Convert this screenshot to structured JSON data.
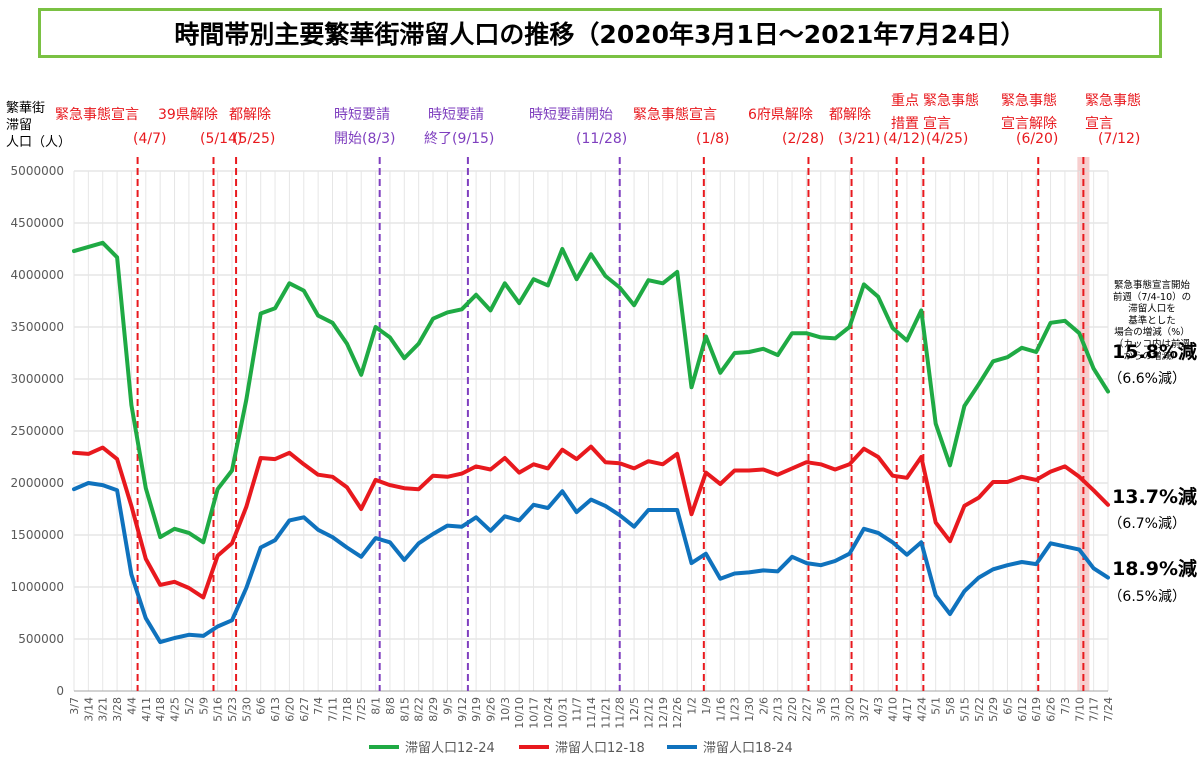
{
  "title": "時間帯別主要繁華街滞留人口の推移（2020年3月1日～2021年7月24日）",
  "colors": {
    "green": "#1faa44",
    "red": "#e8191e",
    "blue": "#0f72bd",
    "event_red": "#e8191e",
    "event_purple": "#7f3fbf",
    "highlight": "#f6c6c6"
  },
  "chart_data": {
    "type": "line",
    "ylabel": "繁華街滞留人口（人）",
    "ylim": [
      0,
      5000000
    ],
    "yticks": [
      0,
      500000,
      1000000,
      1500000,
      2000000,
      2500000,
      3000000,
      3500000,
      4000000,
      4500000,
      5000000
    ],
    "grid": true,
    "legend_position": "bottom",
    "x": [
      "3/7",
      "3/14",
      "3/21",
      "3/28",
      "4/4",
      "4/11",
      "4/18",
      "4/25",
      "5/2",
      "5/9",
      "5/16",
      "5/23",
      "5/30",
      "6/6",
      "6/13",
      "6/20",
      "6/27",
      "7/4",
      "7/11",
      "7/18",
      "7/25",
      "8/1",
      "8/8",
      "8/15",
      "8/22",
      "8/29",
      "9/5",
      "9/12",
      "9/19",
      "9/26",
      "10/3",
      "10/10",
      "10/17",
      "10/24",
      "10/31",
      "11/7",
      "11/14",
      "11/21",
      "11/28",
      "12/5",
      "12/12",
      "12/19",
      "12/26",
      "1/2",
      "1/9",
      "1/16",
      "1/23",
      "1/30",
      "2/6",
      "2/13",
      "2/20",
      "2/27",
      "3/6",
      "3/13",
      "3/20",
      "3/27",
      "4/3",
      "4/10",
      "4/17",
      "4/24",
      "5/1",
      "5/8",
      "5/15",
      "5/22",
      "5/29",
      "6/5",
      "6/12",
      "6/19",
      "6/26",
      "7/3",
      "7/10",
      "7/17",
      "7/24"
    ],
    "x_tick_labels": [
      "3/7",
      "3/14",
      "3/21",
      "3/28",
      "4/4",
      "4/11",
      "4/18",
      "4/25",
      "5/2",
      "5/9",
      "5/16",
      "5/23",
      "5/30",
      "6/6",
      "6/13",
      "6/20",
      "6/27",
      "7/4",
      "7/11",
      "7/18",
      "7/25",
      "8/1",
      "8/8",
      "8/15",
      "8/22",
      "8/29",
      "9/5",
      "9/12",
      "9/19",
      "9/26",
      "10/3",
      "10/10",
      "10/17",
      "10/24",
      "10/31",
      "11/7",
      "11/14",
      "11/21",
      "11/28",
      "12/5",
      "12/12",
      "12/19",
      "12/26",
      "1/2",
      "1/9",
      "1/16",
      "1/23",
      "1/30",
      "2/6",
      "2/13",
      "2/20",
      "2/27",
      "3/6",
      "3/13",
      "3/20",
      "3/27",
      "4/3",
      "4/10",
      "4/17",
      "4/24",
      "5/1",
      "5/8",
      "5/15",
      "5/22",
      "5/29",
      "6/5",
      "6/12",
      "6/19",
      "6/26",
      "7/3",
      "7/10",
      "7/17",
      "7/24"
    ],
    "series": [
      {
        "name": "滞留人口12-24",
        "color": "#1faa44",
        "values": [
          4230000,
          4270000,
          4310000,
          4170000,
          2750000,
          1950000,
          1480000,
          1560000,
          1520000,
          1430000,
          1940000,
          2120000,
          2800000,
          3630000,
          3680000,
          3920000,
          3850000,
          3610000,
          3540000,
          3340000,
          3040000,
          3500000,
          3400000,
          3200000,
          3340000,
          3580000,
          3640000,
          3670000,
          3810000,
          3660000,
          3920000,
          3730000,
          3960000,
          3900000,
          4250000,
          3960000,
          4200000,
          3990000,
          3880000,
          3710000,
          3950000,
          3920000,
          4030000,
          2920000,
          3410000,
          3060000,
          3250000,
          3260000,
          3290000,
          3230000,
          3440000,
          3440000,
          3400000,
          3390000,
          3500000,
          3910000,
          3790000,
          3490000,
          3370000,
          3660000,
          2570000,
          2170000,
          2740000,
          2950000,
          3170000,
          3210000,
          3300000,
          3260000,
          3540000,
          3560000,
          3440000,
          3100000,
          2880000
        ]
      },
      {
        "name": "滞留人口12-18",
        "color": "#e8191e",
        "values": [
          2290000,
          2280000,
          2340000,
          2230000,
          1780000,
          1270000,
          1020000,
          1050000,
          990000,
          900000,
          1300000,
          1420000,
          1770000,
          2240000,
          2230000,
          2290000,
          2180000,
          2080000,
          2060000,
          1960000,
          1750000,
          2030000,
          1980000,
          1950000,
          1940000,
          2070000,
          2060000,
          2090000,
          2160000,
          2130000,
          2240000,
          2100000,
          2180000,
          2140000,
          2320000,
          2230000,
          2350000,
          2200000,
          2190000,
          2140000,
          2210000,
          2180000,
          2280000,
          1700000,
          2100000,
          1990000,
          2120000,
          2120000,
          2130000,
          2080000,
          2140000,
          2200000,
          2180000,
          2130000,
          2180000,
          2330000,
          2250000,
          2070000,
          2050000,
          2250000,
          1620000,
          1440000,
          1780000,
          1860000,
          2010000,
          2010000,
          2060000,
          2030000,
          2110000,
          2160000,
          2060000,
          1930000,
          1790000
        ]
      },
      {
        "name": "滞留人口18-24",
        "color": "#0f72bd",
        "values": [
          1940000,
          2000000,
          1980000,
          1930000,
          1120000,
          700000,
          470000,
          510000,
          540000,
          530000,
          620000,
          680000,
          990000,
          1380000,
          1450000,
          1640000,
          1670000,
          1550000,
          1480000,
          1380000,
          1290000,
          1470000,
          1430000,
          1260000,
          1420000,
          1510000,
          1590000,
          1580000,
          1670000,
          1540000,
          1680000,
          1640000,
          1790000,
          1760000,
          1920000,
          1720000,
          1840000,
          1780000,
          1690000,
          1580000,
          1740000,
          1740000,
          1740000,
          1230000,
          1320000,
          1080000,
          1130000,
          1140000,
          1160000,
          1150000,
          1290000,
          1230000,
          1210000,
          1250000,
          1320000,
          1560000,
          1520000,
          1430000,
          1310000,
          1430000,
          920000,
          740000,
          960000,
          1090000,
          1170000,
          1210000,
          1240000,
          1220000,
          1420000,
          1390000,
          1360000,
          1180000,
          1090000
        ]
      }
    ],
    "events": [
      {
        "label": "緊急事態宣言",
        "date": "(4/7)",
        "at": "4/7",
        "type": "red"
      },
      {
        "label": "39県解除",
        "date": "(5/14)",
        "at": "5/14",
        "type": "red"
      },
      {
        "label": "都解除",
        "date": "(5/25)",
        "at": "5/25",
        "type": "red"
      },
      {
        "label": "時短要請開始(8/3)",
        "date": "",
        "at": "8/3",
        "type": "purple"
      },
      {
        "label": "時短要請終了(9/15)",
        "date": "",
        "at": "9/15",
        "type": "purple"
      },
      {
        "label": "時短要請開始",
        "date": "(11/28)",
        "at": "11/28",
        "type": "purple"
      },
      {
        "label": "緊急事態宣言",
        "date": "(1/8)",
        "at": "1/8",
        "type": "red"
      },
      {
        "label": "6府県解除",
        "date": "(2/28)",
        "at": "2/28",
        "type": "red"
      },
      {
        "label": "都解除",
        "date": "(3/21)",
        "at": "3/21",
        "type": "red"
      },
      {
        "label": "重点措置",
        "date": "(4/12)",
        "at": "4/12",
        "type": "red"
      },
      {
        "label": "緊急事態宣言",
        "date": "(4/25)",
        "at": "4/25",
        "type": "red"
      },
      {
        "label": "緊急事態宣言解除",
        "date": "(6/20)",
        "at": "6/20",
        "type": "red"
      },
      {
        "label": "緊急事態宣言",
        "date": "(7/12)",
        "at": "7/12",
        "type": "red"
      }
    ],
    "annotation_note": "緊急事態宣言開始前週（7/4-10）の滞留人口を基準とした場合の増減（%）（カッコ内は前週からの増減）",
    "end_labels": [
      {
        "series": "滞留人口12-24",
        "main": "15.8%減",
        "sub": "（6.6%減）"
      },
      {
        "series": "滞留人口12-18",
        "main": "13.7%減",
        "sub": "（6.7%減）"
      },
      {
        "series": "滞留人口18-24",
        "main": "18.9%減",
        "sub": "（6.5%減）"
      }
    ]
  }
}
